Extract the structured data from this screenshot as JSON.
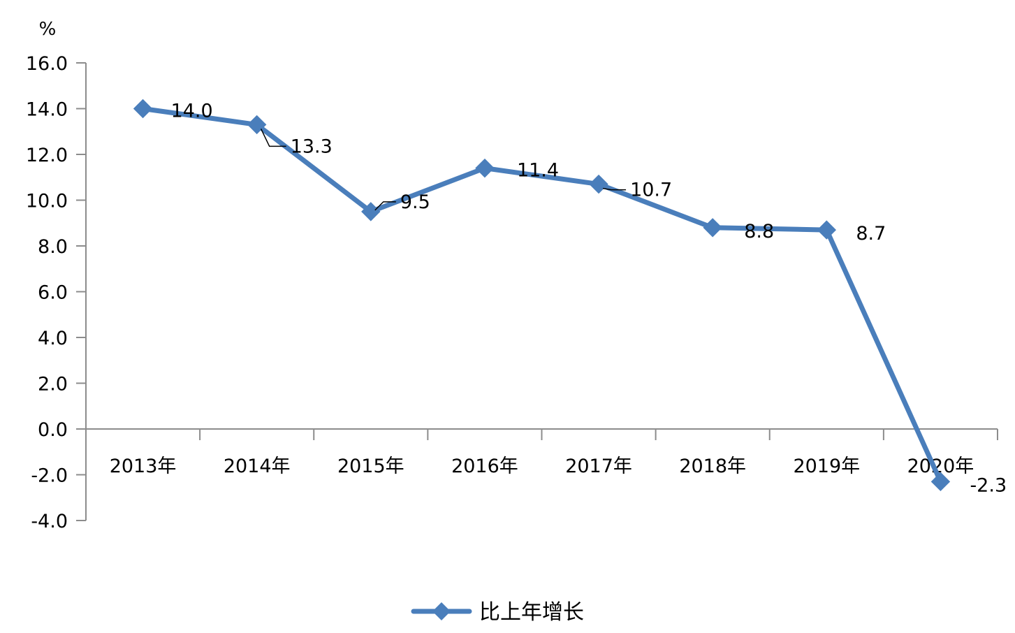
{
  "chart_data": {
    "type": "line",
    "title": "",
    "xlabel": "",
    "ylabel": "%",
    "categories": [
      "2013年",
      "2014年",
      "2015年",
      "2016年",
      "2017年",
      "2018年",
      "2019年",
      "2020年"
    ],
    "series": [
      {
        "name": "比上年增长",
        "values": [
          14.0,
          13.3,
          9.5,
          11.4,
          10.7,
          8.8,
          8.7,
          -2.3
        ],
        "data_labels": [
          "14.0",
          "13.3",
          "9.5",
          "11.4",
          "10.7",
          "8.8",
          "8.7",
          "-2.3"
        ],
        "color": "#4a7ebb",
        "marker": "diamond"
      }
    ],
    "ylim": [
      -4.0,
      16.0
    ],
    "yticks": [
      "16.0",
      "14.0",
      "12.0",
      "10.0",
      "8.0",
      "6.0",
      "4.0",
      "2.0",
      "0.0",
      "-2.0",
      "-4.0"
    ],
    "grid": false,
    "legend_position": "bottom"
  }
}
